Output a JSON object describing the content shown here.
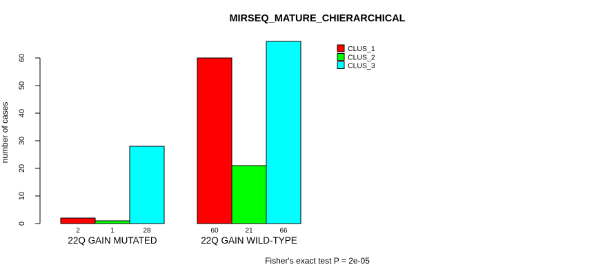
{
  "title": "MIRSEQ_MATURE_CHIERARCHICAL",
  "footer": "Fisher's exact test P = 2e-05",
  "chart_data": {
    "type": "bar",
    "title": "MIRSEQ_MATURE_CHIERARCHICAL",
    "ylabel": "number of cases",
    "xlabel": "",
    "categories": [
      "22Q GAIN MUTATED",
      "22Q GAIN WILD-TYPE"
    ],
    "series": [
      {
        "name": "CLUS_1",
        "color": "#ff0000",
        "values": [
          2,
          60
        ]
      },
      {
        "name": "CLUS_2",
        "color": "#00ff00",
        "values": [
          1,
          21
        ]
      },
      {
        "name": "CLUS_3",
        "color": "#00ffff",
        "values": [
          28,
          66
        ]
      }
    ],
    "bar_value_labels": [
      [
        2,
        1,
        28
      ],
      [
        60,
        21,
        66
      ]
    ],
    "yticks": [
      0,
      10,
      20,
      30,
      40,
      50,
      60
    ],
    "ylim": [
      0,
      66
    ],
    "grid": false,
    "legend_position": "top-right",
    "legend_entries": [
      "CLUS_1",
      "CLUS_2",
      "CLUS_3"
    ],
    "annotation": "Fisher's exact test P = 2e-05",
    "bar_border_color": "#000000",
    "axis_color": "#000000",
    "background_color": "#ffffff"
  }
}
